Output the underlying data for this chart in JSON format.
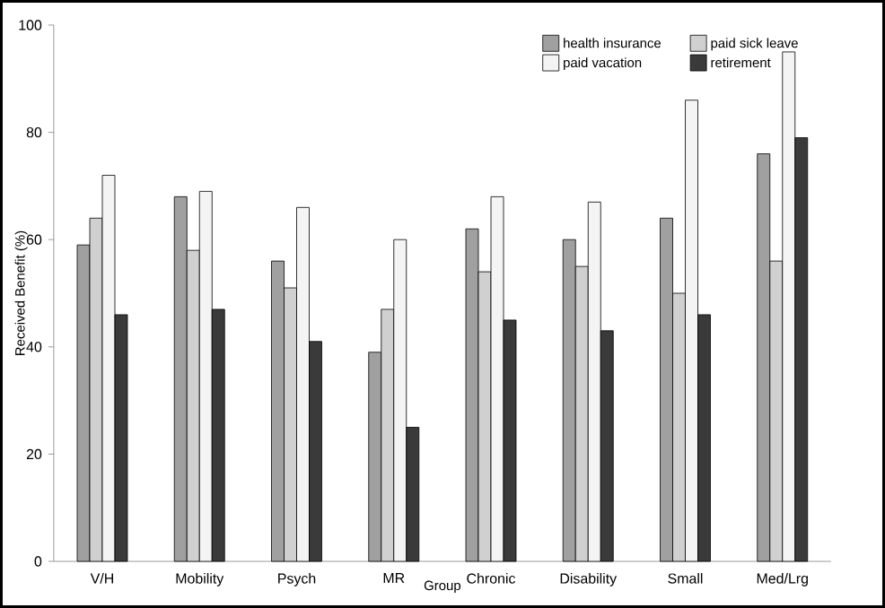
{
  "chart_data": {
    "type": "bar",
    "xlabel": "Group",
    "ylabel": "Received Benefit (%)",
    "categories": [
      "V/H",
      "Mobility",
      "Psych",
      "MR",
      "Chronic",
      "Disability",
      "Small",
      "Med/Lrg"
    ],
    "series": [
      {
        "name": "health insurance",
        "color": "#a0a0a0",
        "values": [
          59,
          68,
          56,
          39,
          62,
          60,
          64,
          76
        ]
      },
      {
        "name": "paid sick leave",
        "color": "#d0d0d0",
        "values": [
          64,
          58,
          51,
          47,
          54,
          55,
          50,
          56
        ]
      },
      {
        "name": "paid vacation",
        "color": "#f4f4f4",
        "values": [
          72,
          69,
          66,
          60,
          68,
          67,
          86,
          95
        ]
      },
      {
        "name": "retirement",
        "color": "#3a3a3a",
        "values": [
          46,
          47,
          41,
          25,
          45,
          43,
          46,
          79
        ]
      }
    ],
    "ylim": [
      0,
      100
    ],
    "yticks": [
      0,
      20,
      40,
      60,
      80,
      100
    ],
    "legend": "top right",
    "grid": false
  }
}
